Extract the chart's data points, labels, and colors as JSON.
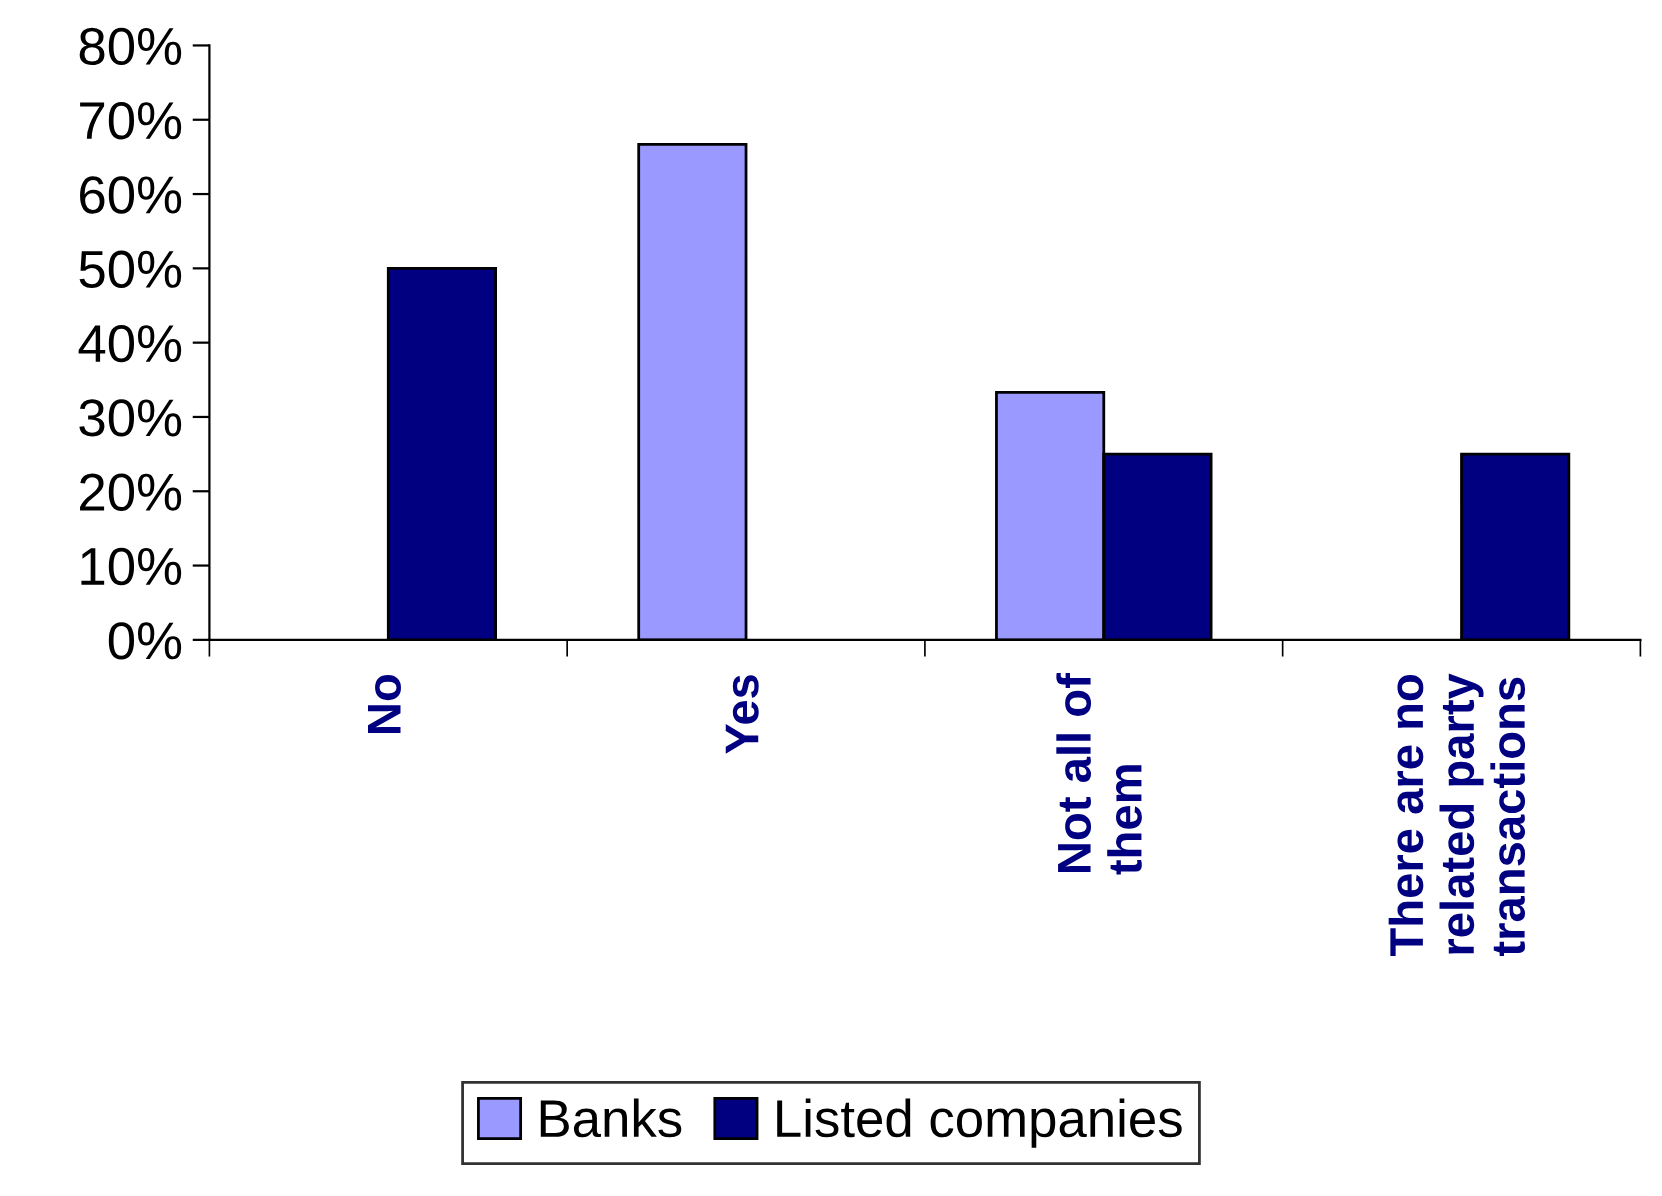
{
  "chart_data": {
    "type": "bar",
    "categories": [
      "No",
      "Yes",
      "Not all of\nthem",
      "There are no\nrelated party\ntransactions"
    ],
    "series": [
      {
        "name": "Banks",
        "color": "#9999ff",
        "values": [
          null,
          66.7,
          33.3,
          null
        ]
      },
      {
        "name": "Listed companies",
        "color": "#000080",
        "values": [
          50,
          null,
          25,
          25
        ]
      }
    ],
    "ylim": [
      0,
      80
    ],
    "yticks": [
      {
        "value": 0,
        "label": "0%"
      },
      {
        "value": 10,
        "label": "10%"
      },
      {
        "value": 20,
        "label": "20%"
      },
      {
        "value": 30,
        "label": "30%"
      },
      {
        "value": 40,
        "label": "40%"
      },
      {
        "value": 50,
        "label": "50%"
      },
      {
        "value": 60,
        "label": "60%"
      },
      {
        "value": 70,
        "label": "70%"
      },
      {
        "value": 80,
        "label": "80%"
      }
    ],
    "grid": false,
    "legend": "bottom"
  }
}
